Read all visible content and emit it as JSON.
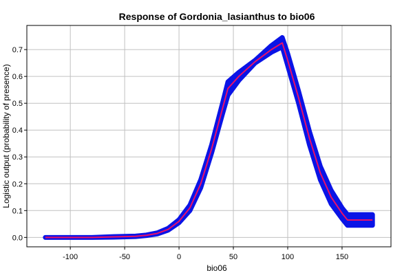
{
  "chart_data": {
    "type": "line",
    "title": "Response of Gordonia_lasianthus to bio06",
    "xlabel": "bio06",
    "ylabel": "Logistic output (probability of presence)",
    "xlim": [
      -140,
      195
    ],
    "ylim": [
      -0.035,
      0.79
    ],
    "x_ticks": [
      -100,
      -50,
      0,
      50,
      100,
      150
    ],
    "x_tick_labels": [
      "-100",
      "-50",
      "0",
      "50",
      "100",
      "150"
    ],
    "y_ticks": [
      0.0,
      0.1,
      0.2,
      0.3,
      0.4,
      0.5,
      0.6,
      0.7
    ],
    "y_tick_labels": [
      "0.0",
      "0.1",
      "0.2",
      "0.3",
      "0.4",
      "0.5",
      "0.6",
      "0.7"
    ],
    "grid": true,
    "colors": {
      "mean_line": "#e8106a",
      "band": "#0a14e6",
      "grid": "#c0c0c0"
    },
    "series": [
      {
        "kind": "mean",
        "x": [
          -123,
          -100,
          -80,
          -60,
          -40,
          -30,
          -20,
          -10,
          0,
          10,
          20,
          30,
          40,
          45,
          55,
          70,
          85,
          95,
          100,
          110,
          120,
          130,
          140,
          150,
          155,
          178
        ],
        "y": [
          0.0,
          0.0,
          0.0,
          0.002,
          0.004,
          0.008,
          0.015,
          0.03,
          0.06,
          0.11,
          0.2,
          0.33,
          0.48,
          0.555,
          0.6,
          0.655,
          0.7,
          0.725,
          0.66,
          0.52,
          0.37,
          0.24,
          0.15,
          0.09,
          0.065,
          0.065
        ]
      },
      {
        "kind": "band",
        "x": [
          -123,
          -100,
          -80,
          -60,
          -40,
          -30,
          -20,
          -10,
          0,
          10,
          20,
          30,
          40,
          45,
          55,
          70,
          85,
          95,
          100,
          110,
          120,
          130,
          140,
          150,
          155,
          178
        ],
        "y_lower": [
          0.0,
          0.0,
          0.0,
          0.001,
          0.003,
          0.007,
          0.013,
          0.027,
          0.055,
          0.1,
          0.185,
          0.315,
          0.46,
          0.53,
          0.585,
          0.65,
          0.69,
          0.71,
          0.64,
          0.5,
          0.345,
          0.215,
          0.125,
          0.07,
          0.045,
          0.045
        ],
        "y_upper": [
          0.0,
          0.0,
          0.0,
          0.003,
          0.005,
          0.009,
          0.017,
          0.034,
          0.066,
          0.12,
          0.215,
          0.345,
          0.5,
          0.58,
          0.615,
          0.66,
          0.715,
          0.745,
          0.685,
          0.545,
          0.395,
          0.265,
          0.175,
          0.11,
          0.085,
          0.085
        ]
      }
    ]
  }
}
